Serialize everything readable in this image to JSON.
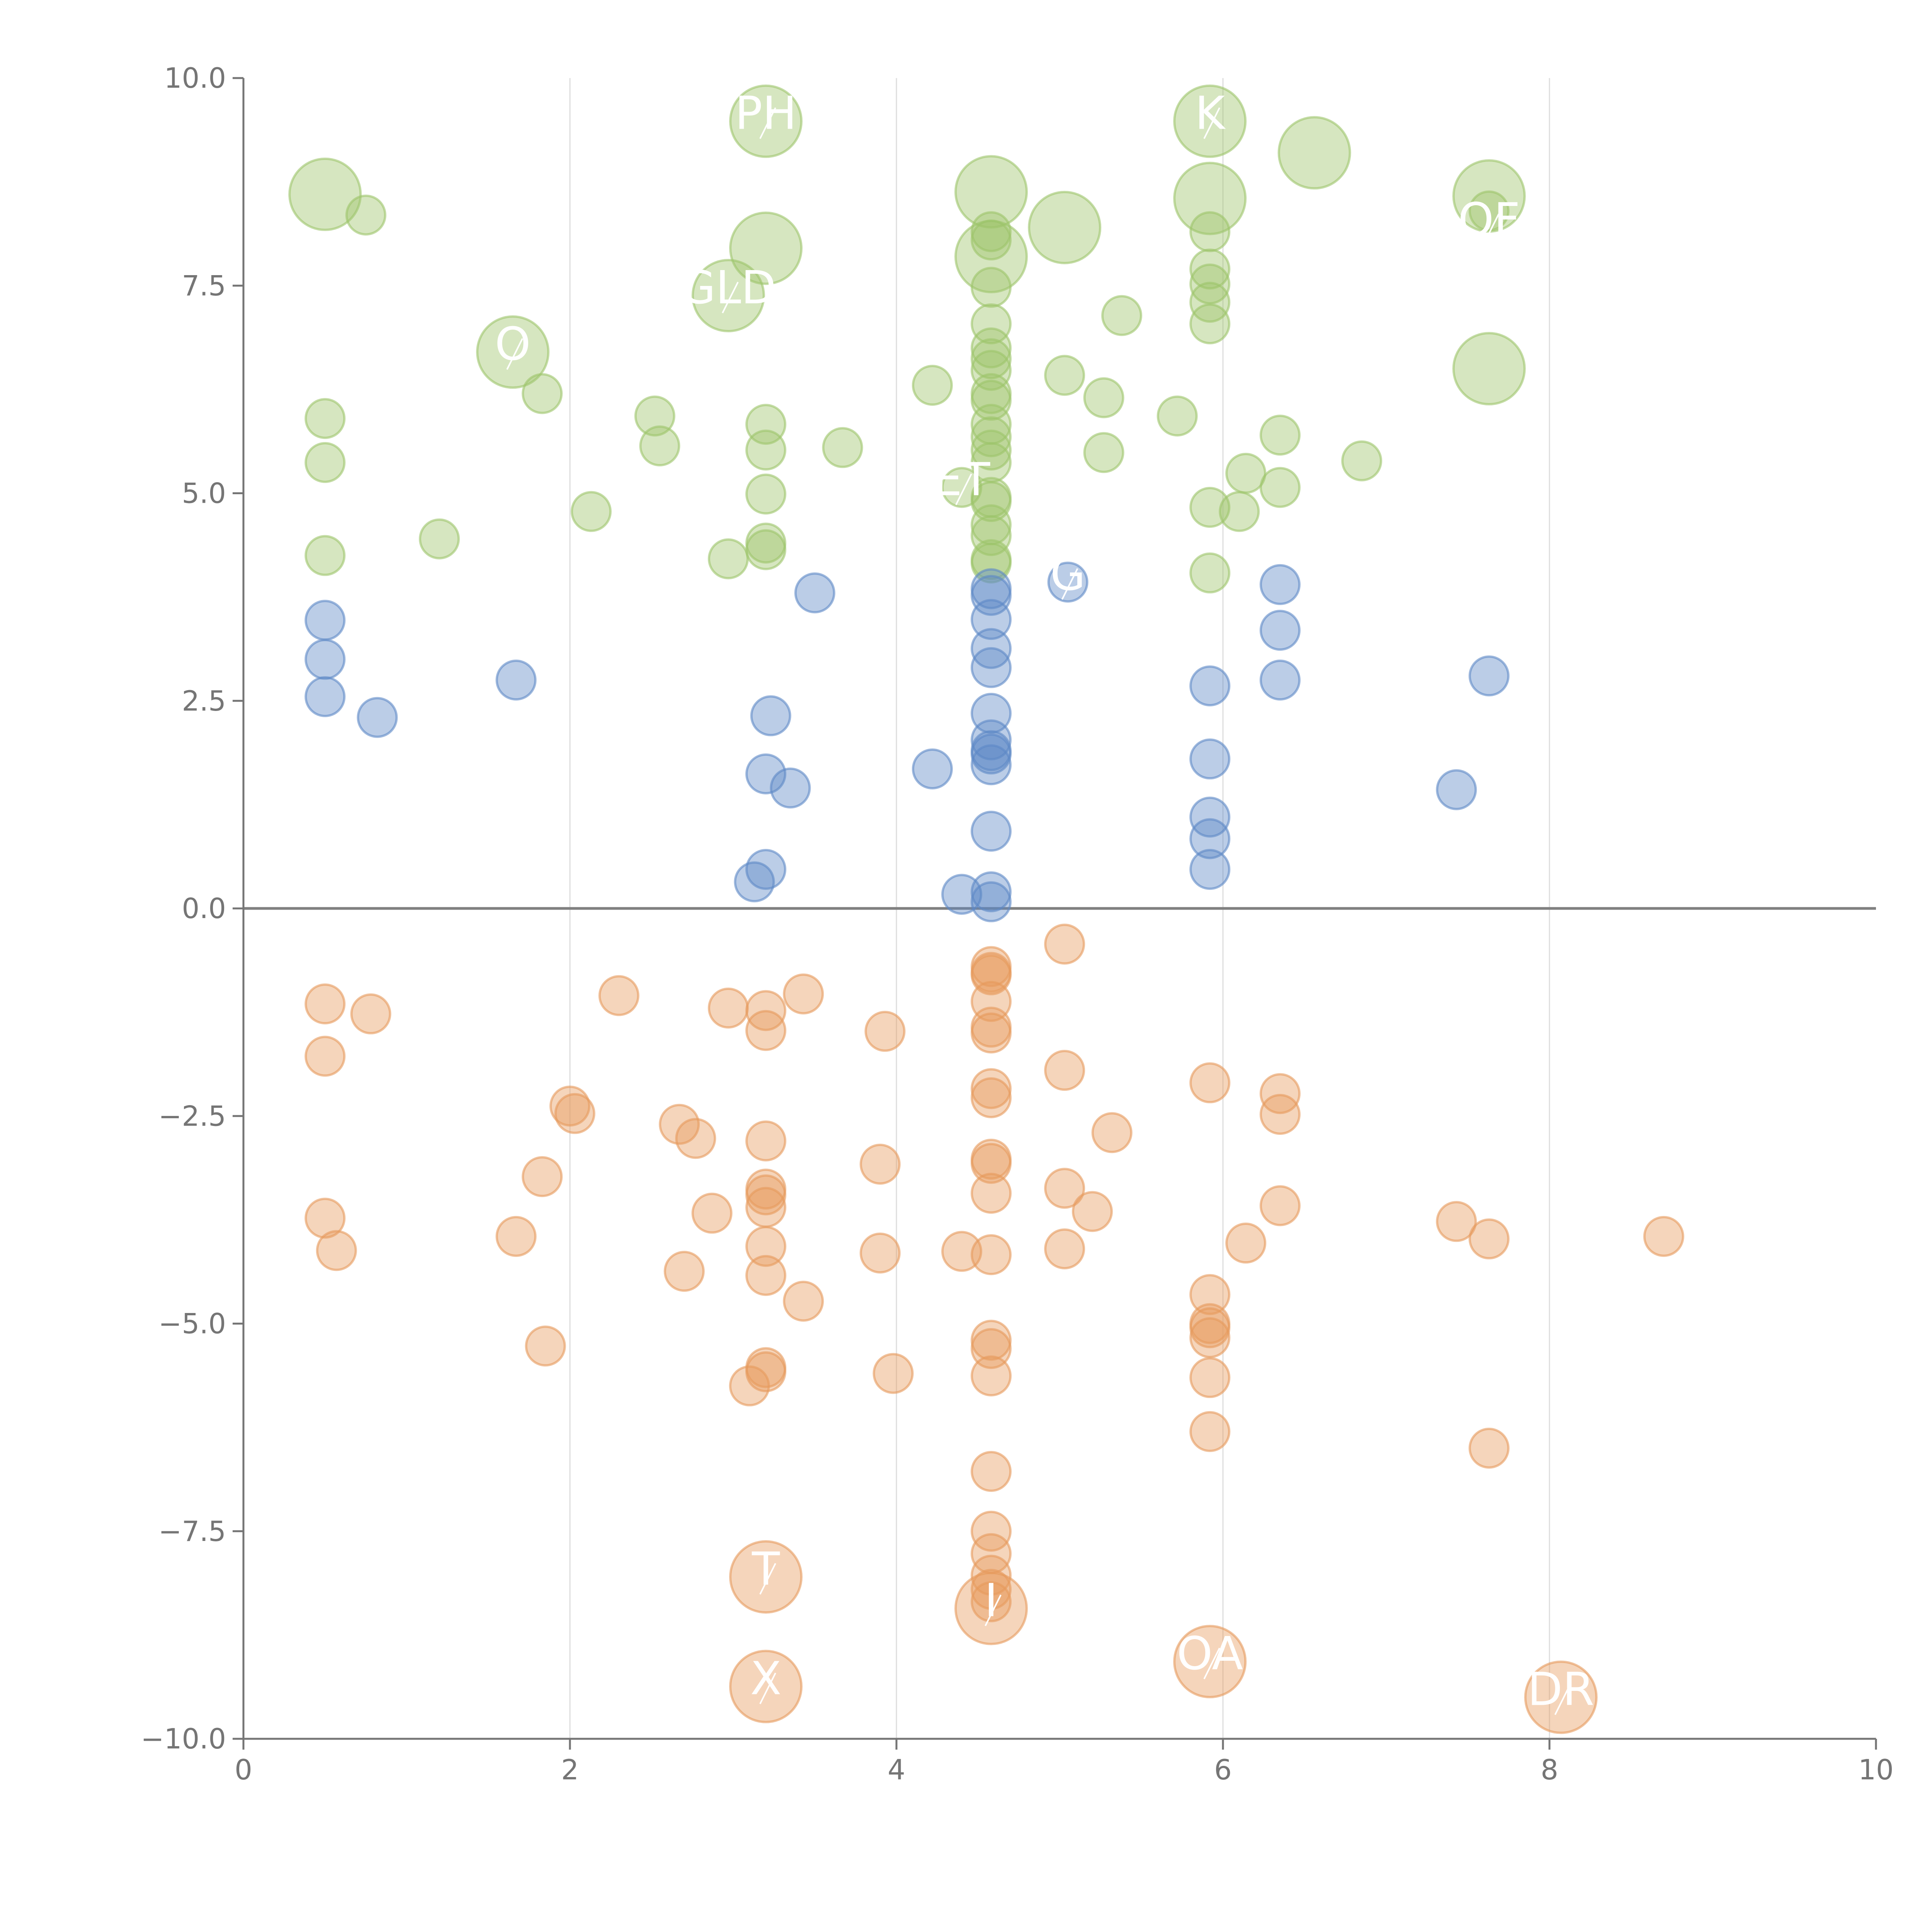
{
  "chart_data": {
    "type": "scatter",
    "title": "",
    "xlabel": "",
    "ylabel": "",
    "xlim": [
      0,
      10
    ],
    "ylim": [
      -10,
      10
    ],
    "x_ticks": [
      "0",
      "2",
      "4",
      "6",
      "8",
      "10"
    ],
    "y_ticks": [
      "10.0",
      "7.5",
      "5.0",
      "2.5",
      "0.0",
      "−2.5",
      "−5.0",
      "−7.5",
      "−10.0"
    ],
    "grid": "vertical",
    "colors": {
      "green": "#9dc46a",
      "blue": "#5d88c6",
      "orange": "#e69a5c",
      "axis": "#757575",
      "grid": "#dddddd",
      "zero_line": "#808080"
    },
    "series": [
      {
        "name": "green",
        "color": "#9dc46a",
        "points": [
          [
            0.5,
            5.9
          ],
          [
            0.5,
            5.37
          ],
          [
            0.5,
            4.25
          ],
          [
            0.75,
            8.35
          ],
          [
            1.2,
            4.45
          ],
          [
            1.83,
            6.2
          ],
          [
            2.13,
            4.78
          ],
          [
            2.52,
            5.93
          ],
          [
            2.55,
            5.57
          ],
          [
            2.97,
            4.21
          ],
          [
            3.2,
            5.83
          ],
          [
            3.2,
            5.52
          ],
          [
            3.2,
            4.99
          ],
          [
            3.2,
            4.4
          ],
          [
            3.2,
            4.32
          ],
          [
            3.67,
            5.55
          ],
          [
            4.22,
            6.3
          ],
          [
            4.4,
            5.07
          ],
          [
            4.58,
            8.15
          ],
          [
            4.58,
            8.05
          ],
          [
            4.58,
            7.48
          ],
          [
            4.58,
            7.04
          ],
          [
            4.58,
            6.75
          ],
          [
            4.58,
            6.62
          ],
          [
            4.58,
            6.48
          ],
          [
            4.58,
            6.2
          ],
          [
            4.58,
            6.12
          ],
          [
            4.58,
            5.83
          ],
          [
            4.58,
            5.68
          ],
          [
            4.58,
            5.52
          ],
          [
            4.58,
            5.37
          ],
          [
            4.58,
            4.95
          ],
          [
            4.58,
            4.9
          ],
          [
            4.58,
            4.62
          ],
          [
            4.58,
            4.49
          ],
          [
            4.58,
            4.2
          ],
          [
            4.58,
            4.16
          ],
          [
            5.03,
            6.42
          ],
          [
            5.27,
            6.15
          ],
          [
            5.27,
            5.49
          ],
          [
            5.38,
            7.14
          ],
          [
            5.72,
            5.93
          ],
          [
            5.92,
            8.15
          ],
          [
            5.92,
            7.7
          ],
          [
            5.92,
            7.52
          ],
          [
            5.92,
            7.3
          ],
          [
            5.92,
            7.04
          ],
          [
            5.92,
            4.83
          ],
          [
            5.92,
            4.04
          ],
          [
            6.1,
            4.78
          ],
          [
            6.14,
            5.24
          ],
          [
            6.35,
            5.7
          ],
          [
            6.35,
            5.07
          ],
          [
            6.85,
            5.39
          ],
          [
            7.63,
            8.4
          ]
        ],
        "big_points": [
          [
            0.5,
            8.6
          ],
          [
            1.65,
            6.7
          ],
          [
            2.97,
            7.38
          ],
          [
            3.2,
            9.48
          ],
          [
            3.2,
            7.95
          ],
          [
            4.58,
            8.63
          ],
          [
            4.58,
            7.85
          ],
          [
            5.03,
            8.2
          ],
          [
            5.92,
            9.48
          ],
          [
            5.92,
            8.55
          ],
          [
            6.56,
            9.1
          ],
          [
            7.63,
            8.58
          ],
          [
            7.63,
            6.5
          ]
        ]
      },
      {
        "name": "blue",
        "color": "#5d88c6",
        "points": [
          [
            0.5,
            3.47
          ],
          [
            0.5,
            3.0
          ],
          [
            0.5,
            2.55
          ],
          [
            0.82,
            2.3
          ],
          [
            1.67,
            2.75
          ],
          [
            3.13,
            0.32
          ],
          [
            3.2,
            1.62
          ],
          [
            3.2,
            0.47
          ],
          [
            3.23,
            2.32
          ],
          [
            3.35,
            1.45
          ],
          [
            3.5,
            3.8
          ],
          [
            4.22,
            1.68
          ],
          [
            4.4,
            0.17
          ],
          [
            4.58,
            3.85
          ],
          [
            4.58,
            3.77
          ],
          [
            4.58,
            3.48
          ],
          [
            4.58,
            3.13
          ],
          [
            4.58,
            2.9
          ],
          [
            4.58,
            2.35
          ],
          [
            4.58,
            2.03
          ],
          [
            4.58,
            1.9
          ],
          [
            4.58,
            1.86
          ],
          [
            4.58,
            1.73
          ],
          [
            4.58,
            0.93
          ],
          [
            4.58,
            0.2
          ],
          [
            4.58,
            0.08
          ],
          [
            5.05,
            3.93
          ],
          [
            5.92,
            2.68
          ],
          [
            5.92,
            1.8
          ],
          [
            5.92,
            1.1
          ],
          [
            5.92,
            0.84
          ],
          [
            5.92,
            0.47
          ],
          [
            6.35,
            3.9
          ],
          [
            6.35,
            3.35
          ],
          [
            6.35,
            2.75
          ],
          [
            7.43,
            1.43
          ],
          [
            7.63,
            2.8
          ]
        ]
      },
      {
        "name": "orange",
        "color": "#e69a5c",
        "points": [
          [
            0.5,
            -1.15
          ],
          [
            0.5,
            -1.78
          ],
          [
            0.5,
            -3.73
          ],
          [
            0.57,
            -4.12
          ],
          [
            0.78,
            -1.27
          ],
          [
            1.67,
            -3.95
          ],
          [
            1.83,
            -3.23
          ],
          [
            1.85,
            -5.27
          ],
          [
            2.0,
            -2.38
          ],
          [
            2.03,
            -2.47
          ],
          [
            2.3,
            -1.05
          ],
          [
            2.67,
            -2.6
          ],
          [
            2.7,
            -4.37
          ],
          [
            2.77,
            -2.77
          ],
          [
            2.87,
            -3.67
          ],
          [
            2.97,
            -1.2
          ],
          [
            3.1,
            -5.75
          ],
          [
            3.2,
            -1.23
          ],
          [
            3.2,
            -1.47
          ],
          [
            3.2,
            -2.8
          ],
          [
            3.2,
            -3.38
          ],
          [
            3.2,
            -3.45
          ],
          [
            3.2,
            -3.6
          ],
          [
            3.2,
            -4.07
          ],
          [
            3.2,
            -4.42
          ],
          [
            3.2,
            -5.53
          ],
          [
            3.2,
            -5.58
          ],
          [
            3.43,
            -4.73
          ],
          [
            3.43,
            -1.03
          ],
          [
            3.9,
            -3.08
          ],
          [
            3.9,
            -4.15
          ],
          [
            3.93,
            -1.48
          ],
          [
            3.98,
            -5.6
          ],
          [
            4.4,
            -4.13
          ],
          [
            4.58,
            -0.7
          ],
          [
            4.58,
            -0.77
          ],
          [
            4.58,
            -0.8
          ],
          [
            4.58,
            -1.12
          ],
          [
            4.58,
            -1.43
          ],
          [
            4.58,
            -1.5
          ],
          [
            4.58,
            -2.17
          ],
          [
            4.58,
            -2.28
          ],
          [
            4.58,
            -3.02
          ],
          [
            4.58,
            -3.07
          ],
          [
            4.58,
            -3.43
          ],
          [
            4.58,
            -4.17
          ],
          [
            4.58,
            -5.2
          ],
          [
            4.58,
            -5.3
          ],
          [
            4.58,
            -5.63
          ],
          [
            4.58,
            -6.78
          ],
          [
            4.58,
            -7.5
          ],
          [
            4.58,
            -7.77
          ],
          [
            4.58,
            -8.03
          ],
          [
            4.58,
            -8.2
          ],
          [
            4.58,
            -8.35
          ],
          [
            5.03,
            -0.43
          ],
          [
            5.03,
            -1.95
          ],
          [
            5.03,
            -3.37
          ],
          [
            5.03,
            -4.1
          ],
          [
            5.2,
            -3.65
          ],
          [
            5.32,
            -2.7
          ],
          [
            5.92,
            -2.1
          ],
          [
            5.92,
            -4.65
          ],
          [
            5.92,
            -5.0
          ],
          [
            5.92,
            -5.05
          ],
          [
            5.92,
            -5.17
          ],
          [
            5.92,
            -5.65
          ],
          [
            5.92,
            -6.3
          ],
          [
            6.14,
            -4.03
          ],
          [
            6.35,
            -2.23
          ],
          [
            6.35,
            -2.48
          ],
          [
            6.35,
            -3.58
          ],
          [
            7.43,
            -3.77
          ],
          [
            7.63,
            -3.98
          ],
          [
            7.63,
            -6.5
          ],
          [
            8.7,
            -3.95
          ]
        ],
        "big_points": [
          [
            3.2,
            -8.05
          ],
          [
            3.2,
            -9.37
          ],
          [
            4.58,
            -8.43
          ],
          [
            5.92,
            -9.07
          ],
          [
            8.07,
            -9.5
          ]
        ]
      }
    ],
    "annotations": [
      {
        "text": "K",
        "x": 5.92,
        "y": 9.48
      },
      {
        "text": "PH",
        "x": 3.2,
        "y": 9.48
      },
      {
        "text": "GLD",
        "x": 2.97,
        "y": 7.38
      },
      {
        "text": "O",
        "x": 1.65,
        "y": 6.7
      },
      {
        "text": "OF",
        "x": 7.63,
        "y": 8.2
      },
      {
        "text": "ET",
        "x": 4.4,
        "y": 5.07
      },
      {
        "text": "G",
        "x": 5.05,
        "y": 3.93
      },
      {
        "text": "T",
        "x": 3.2,
        "y": -8.05
      },
      {
        "text": "X",
        "x": 3.2,
        "y": -9.37
      },
      {
        "text": "I",
        "x": 4.58,
        "y": -8.43
      },
      {
        "text": "OA",
        "x": 5.92,
        "y": -9.07
      },
      {
        "text": "DR",
        "x": 8.07,
        "y": -9.5
      }
    ]
  }
}
